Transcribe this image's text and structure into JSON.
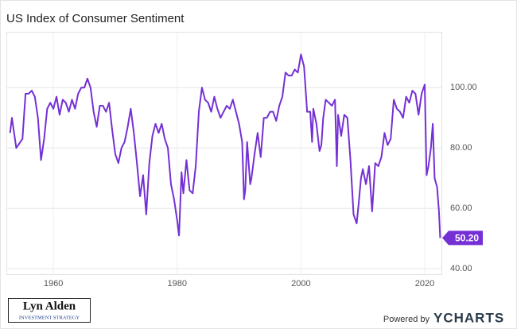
{
  "chart_data": {
    "type": "line",
    "title": "US Index of Consumer Sentiment",
    "x": [
      1953,
      1953.3,
      1954,
      1955,
      1955.5,
      1956,
      1956.5,
      1957,
      1957.5,
      1958,
      1958.5,
      1959,
      1959.5,
      1960,
      1960.5,
      1961,
      1961.5,
      1962,
      1962.5,
      1963,
      1963.5,
      1964,
      1964.5,
      1965,
      1965.5,
      1966,
      1966.5,
      1967,
      1967.5,
      1968,
      1968.5,
      1969,
      1969.5,
      1970,
      1970.5,
      1971,
      1971.5,
      1972,
      1972.5,
      1973,
      1973.5,
      1974,
      1974.5,
      1975,
      1975.5,
      1976,
      1976.5,
      1977,
      1977.5,
      1978,
      1978.5,
      1979,
      1979.5,
      1980,
      1980.3,
      1980.7,
      1981,
      1981.5,
      1982,
      1982.5,
      1983,
      1983.5,
      1984,
      1984.5,
      1985,
      1985.5,
      1986,
      1986.5,
      1987,
      1987.5,
      1988,
      1988.5,
      1989,
      1989.5,
      1990,
      1990.5,
      1990.8,
      1991,
      1991.3,
      1991.8,
      1992,
      1992.5,
      1993,
      1993.5,
      1994,
      1994.5,
      1995,
      1995.5,
      1996,
      1996.5,
      1997,
      1997.5,
      1998,
      1998.5,
      1999,
      1999.5,
      2000,
      2000.5,
      2001,
      2001.5,
      2001.8,
      2002,
      2002.5,
      2003,
      2003.3,
      2003.6,
      2004,
      2004.5,
      2005,
      2005.5,
      2005.8,
      2006,
      2006.5,
      2007,
      2007.5,
      2008,
      2008.5,
      2009,
      2009.3,
      2009.7,
      2010,
      2010.5,
      2011,
      2011.5,
      2012,
      2012.5,
      2013,
      2013.5,
      2014,
      2014.5,
      2015,
      2015.5,
      2016,
      2016.5,
      2017,
      2017.5,
      2018,
      2018.5,
      2019,
      2019.5,
      2020,
      2020.3,
      2020.6,
      2021,
      2021.3,
      2021.6,
      2022,
      2022.3,
      2022.5
    ],
    "series": [
      {
        "name": "US Index of Consumer Sentiment",
        "color": "#7430d4",
        "values": [
          85,
          90,
          80,
          83,
          98,
          98,
          99,
          97,
          90,
          76,
          83,
          93,
          95,
          93,
          97,
          91,
          96,
          95,
          92,
          96,
          93,
          98,
          100,
          100,
          103,
          100,
          92,
          87,
          94,
          94,
          92,
          95,
          86,
          78,
          75,
          80,
          82,
          87,
          93,
          85,
          75,
          64,
          71,
          58,
          75,
          84,
          88,
          85,
          88,
          83,
          80,
          68,
          63,
          56,
          51,
          72,
          65,
          76,
          66,
          65,
          74,
          92,
          100,
          96,
          95,
          92,
          97,
          93,
          90,
          92,
          94,
          93,
          96,
          92,
          88,
          82,
          63,
          66,
          82,
          68,
          70,
          78,
          85,
          77,
          90,
          90,
          92,
          92,
          89,
          94,
          97,
          105,
          104,
          104,
          106,
          105,
          111,
          107,
          92,
          92,
          82,
          93,
          88,
          79,
          81,
          90,
          96,
          95,
          94,
          96,
          74,
          91,
          84,
          91,
          90,
          76,
          58,
          55,
          61,
          70,
          73,
          68,
          74,
          59,
          75,
          74,
          77,
          85,
          81,
          83,
          96,
          93,
          92,
          90,
          97,
          95,
          99,
          98,
          91,
          98,
          101,
          71,
          74,
          80,
          88,
          70,
          67,
          59,
          50.2
        ]
      }
    ],
    "last_value_label": "50.20",
    "xlim": [
      1952.4,
      2022.7
    ],
    "xticks": [
      1960,
      1980,
      2000,
      2020
    ],
    "ylim": [
      38.2,
      118.5
    ],
    "yticks": [
      {
        "value": 40,
        "label": "40.00"
      },
      {
        "value": 60,
        "label": "60.00"
      },
      {
        "value": 80,
        "label": "80.00"
      },
      {
        "value": 100,
        "label": "100.00"
      }
    ],
    "grid": true
  },
  "branding": {
    "author": "Lyn Alden",
    "author_tagline": "INVESTMENT STRATEGY",
    "powered_by": "Powered by",
    "provider": "YCHARTS"
  }
}
